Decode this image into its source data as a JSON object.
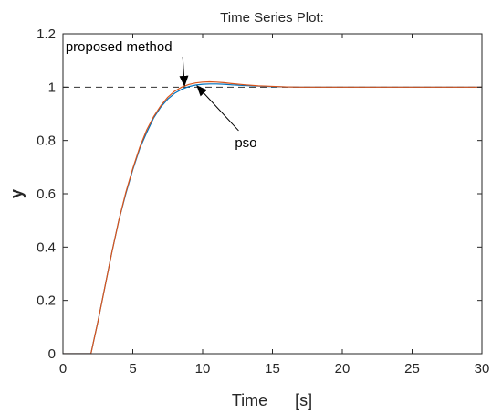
{
  "chart_data": {
    "type": "line",
    "title": "Time Series Plot:",
    "xlabel": "Time      [s]",
    "ylabel": "y",
    "xlim": [
      0,
      30
    ],
    "ylim": [
      0,
      1.2
    ],
    "xticks": [
      0,
      5,
      10,
      15,
      20,
      25,
      30
    ],
    "yticks": [
      0,
      0.2,
      0.4,
      0.6,
      0.8,
      1,
      1.2
    ],
    "xtick_labels": [
      "0",
      "5",
      "10",
      "15",
      "20",
      "25",
      "30"
    ],
    "ytick_labels": [
      "0",
      "0.2",
      "0.4",
      "0.6",
      "0.8",
      "1",
      "1.2"
    ],
    "grid": false,
    "reference_line": {
      "y": 1,
      "style": "dashed",
      "color": "#333333"
    },
    "series": [
      {
        "color": "#0072bd",
        "x": [
          0,
          2,
          2.5,
          3,
          3.5,
          4,
          4.5,
          5,
          5.5,
          6,
          6.5,
          7,
          7.5,
          8,
          8.5,
          9,
          9.5,
          10,
          10.5,
          11,
          11.5,
          12,
          13,
          14,
          15,
          16,
          17,
          18,
          20,
          22,
          25,
          30
        ],
        "y": [
          0,
          0,
          0.12,
          0.25,
          0.38,
          0.5,
          0.6,
          0.69,
          0.77,
          0.83,
          0.885,
          0.925,
          0.955,
          0.977,
          0.992,
          1.002,
          1.008,
          1.011,
          1.012,
          1.012,
          1.011,
          1.009,
          1.006,
          1.004,
          1.002,
          1.001,
          1.0,
          1.0,
          1.0,
          1.0,
          1.0,
          1.0
        ]
      },
      {
        "color": "#d95319",
        "x": [
          0,
          2,
          2.5,
          3,
          3.5,
          4,
          4.5,
          5,
          5.5,
          6,
          6.5,
          7,
          7.5,
          8,
          8.5,
          9,
          9.5,
          10,
          10.5,
          11,
          11.5,
          12,
          13,
          14,
          15,
          16,
          17,
          18,
          20,
          22,
          25,
          30
        ],
        "y": [
          0,
          0,
          0.12,
          0.25,
          0.38,
          0.5,
          0.605,
          0.695,
          0.775,
          0.84,
          0.89,
          0.93,
          0.962,
          0.985,
          1.0,
          1.01,
          1.016,
          1.019,
          1.02,
          1.019,
          1.017,
          1.014,
          1.009,
          1.005,
          1.003,
          1.001,
          1.0,
          1.0,
          1.0,
          1.0,
          1.0,
          1.0
        ]
      }
    ],
    "annotations": [
      {
        "text": "proposed method",
        "text_x": 4,
        "text_y": 1.135,
        "arrow_to_x": 8.7,
        "arrow_to_y": 1.005
      },
      {
        "text": "pso",
        "text_x": 13.1,
        "text_y": 0.775,
        "arrow_to_x": 9.6,
        "arrow_to_y": 1.005
      }
    ]
  }
}
